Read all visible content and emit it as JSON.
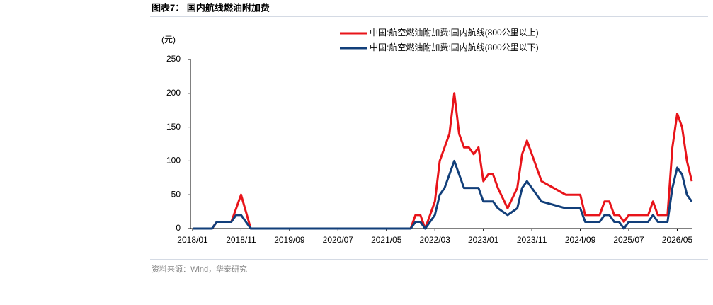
{
  "chart_data": {
    "type": "line",
    "title": "图表7：  国内航线燃油附加费",
    "y_label": "(元)",
    "source": "资料来源：Wind，华泰研究",
    "categories": [
      "2018/01",
      null,
      null,
      null,
      null,
      null,
      null,
      null,
      null,
      null,
      "2018/11",
      null,
      null,
      null,
      null,
      null,
      null,
      null,
      null,
      null,
      "2019/09",
      null,
      null,
      null,
      null,
      null,
      null,
      null,
      null,
      null,
      "2020/07",
      null,
      null,
      null,
      null,
      null,
      null,
      null,
      null,
      null,
      "2021/05",
      null,
      null,
      null,
      null,
      null,
      null,
      null,
      null,
      null,
      "2022/03",
      null,
      null,
      null,
      null,
      null,
      null,
      null,
      null,
      null,
      "2023/01",
      null,
      null,
      null,
      null,
      null,
      null,
      null,
      null,
      null,
      "2023/11",
      null,
      null,
      null,
      null,
      null,
      null,
      null,
      null,
      null,
      "2024/09",
      null,
      null,
      null,
      null,
      null,
      null,
      null,
      null,
      null,
      "2025/07",
      null,
      null,
      null,
      null,
      null,
      null,
      null,
      null,
      null,
      "2026/05",
      null,
      null,
      null
    ],
    "series": [
      {
        "name": "中国:航空燃油附加费:国内航线(800公里以上)",
        "color": "#e8141a",
        "values": [
          0,
          0,
          0,
          0,
          0,
          10,
          10,
          10,
          10,
          30,
          50,
          25,
          0,
          0,
          0,
          0,
          0,
          0,
          0,
          0,
          0,
          0,
          0,
          0,
          0,
          0,
          0,
          0,
          0,
          0,
          0,
          0,
          0,
          0,
          0,
          0,
          0,
          0,
          0,
          0,
          0,
          0,
          0,
          0,
          0,
          0,
          20,
          20,
          0,
          20,
          40,
          100,
          120,
          140,
          200,
          140,
          120,
          120,
          110,
          120,
          70,
          80,
          80,
          60,
          45,
          30,
          45,
          60,
          110,
          130,
          110,
          90,
          70,
          66,
          62,
          58,
          54,
          50,
          50,
          50,
          50,
          20,
          20,
          20,
          20,
          40,
          40,
          20,
          20,
          10,
          20,
          20,
          20,
          20,
          20,
          40,
          20,
          20,
          20,
          120,
          170,
          150,
          100,
          70
        ]
      },
      {
        "name": "中国:航空燃油附加费:国内航线(800公里以下)",
        "color": "#123f7a",
        "values": [
          0,
          0,
          0,
          0,
          0,
          10,
          10,
          10,
          10,
          20,
          20,
          10,
          0,
          0,
          0,
          0,
          0,
          0,
          0,
          0,
          0,
          0,
          0,
          0,
          0,
          0,
          0,
          0,
          0,
          0,
          0,
          0,
          0,
          0,
          0,
          0,
          0,
          0,
          0,
          0,
          0,
          0,
          0,
          0,
          0,
          0,
          10,
          10,
          0,
          10,
          20,
          50,
          60,
          80,
          100,
          80,
          60,
          60,
          60,
          60,
          40,
          40,
          40,
          30,
          25,
          20,
          25,
          30,
          60,
          70,
          60,
          50,
          40,
          38,
          36,
          34,
          32,
          30,
          30,
          30,
          30,
          10,
          10,
          10,
          10,
          20,
          20,
          10,
          10,
          0,
          10,
          10,
          10,
          10,
          10,
          20,
          10,
          10,
          10,
          60,
          90,
          80,
          50,
          40
        ]
      }
    ],
    "ylim": [
      0,
      250
    ],
    "yticks": [
      0,
      50,
      100,
      150,
      200,
      250
    ],
    "grid": false
  }
}
